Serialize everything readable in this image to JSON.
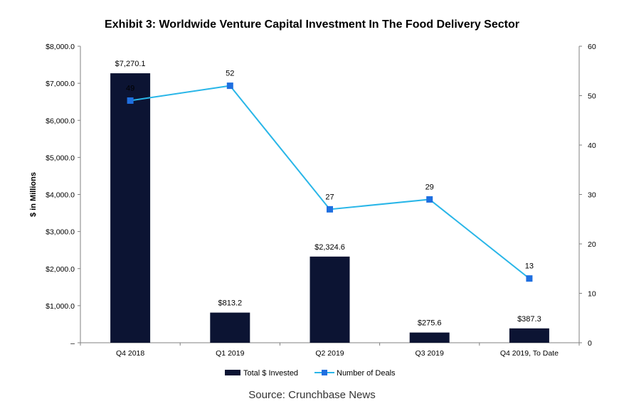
{
  "title": "Exhibit 3: Worldwide Venture Capital Investment In The Food Delivery Sector",
  "source": "Source: Crunchbase News",
  "chart_data": {
    "type": "bar",
    "categories": [
      "Q4 2018",
      "Q1 2019",
      "Q2 2019",
      "Q3 2019",
      "Q4 2019, To Date"
    ],
    "series": [
      {
        "name": "Total $ Invested",
        "type": "bar",
        "axis": "left",
        "values": [
          7270.1,
          813.2,
          2324.6,
          275.6,
          387.3
        ],
        "labels": [
          "$7,270.1",
          "$813.2",
          "$2,324.6",
          "$275.6",
          "$387.3"
        ],
        "color": "#0c1433"
      },
      {
        "name": "Number of Deals",
        "type": "line",
        "axis": "right",
        "values": [
          49,
          52,
          27,
          29,
          13
        ],
        "labels": [
          "49",
          "52",
          "27",
          "29",
          "13"
        ],
        "color": "#29b6e8",
        "marker_color": "#1f6fe0"
      }
    ],
    "ylabel": "$ in Millions",
    "ylim": [
      0,
      8000
    ],
    "y_ticks": [
      "–",
      "$1,000.0",
      "$2,000.0",
      "$3,000.0",
      "$4,000.0",
      "$5,000.0",
      "$6,000.0",
      "$7,000.0",
      "$8,000.0"
    ],
    "y2lim": [
      0,
      60
    ],
    "y2_ticks": [
      "0",
      "10",
      "20",
      "30",
      "40",
      "50",
      "60"
    ],
    "legend": "bottom",
    "grid": false
  }
}
